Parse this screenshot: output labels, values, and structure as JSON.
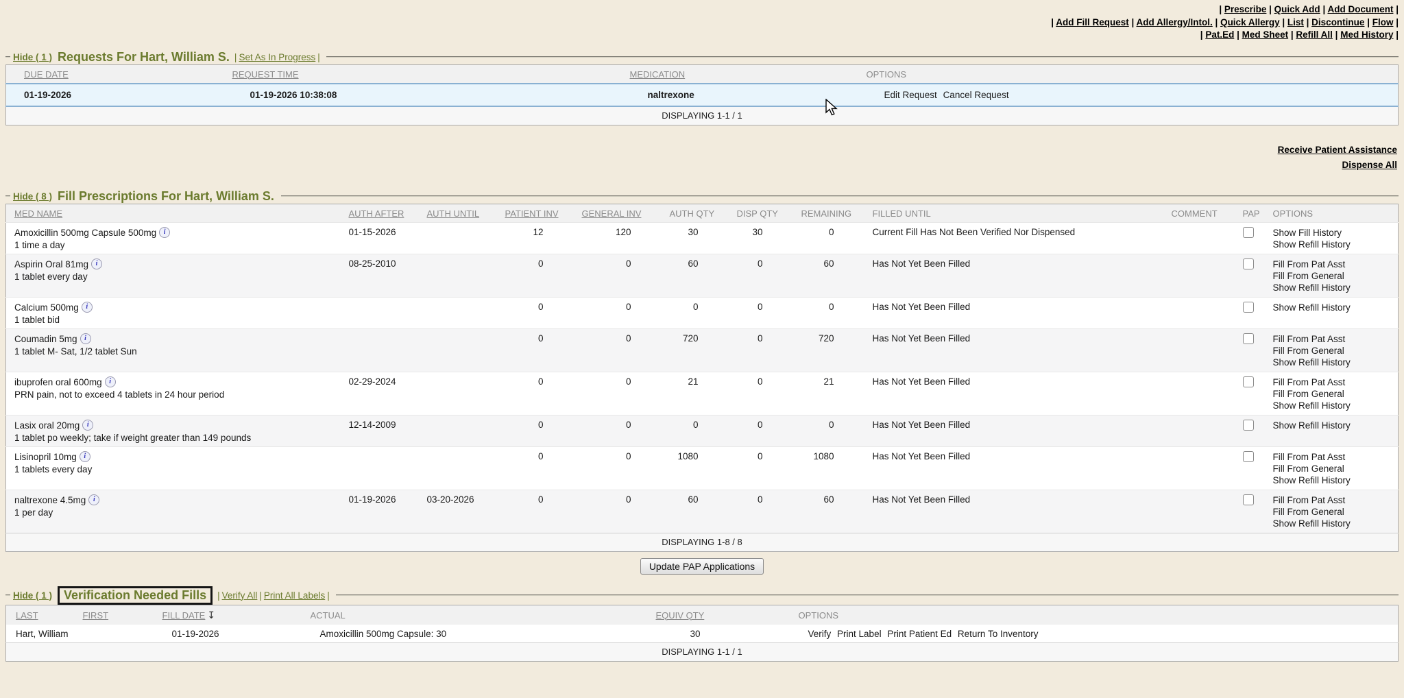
{
  "page": {
    "background": "#f2ebdd",
    "accent_green": "#6b7b2e",
    "selected_row_bg": "#e9f5fc",
    "selected_row_border": "#8ab1d2"
  },
  "icons": {
    "info": "i",
    "sort_desc": "↧",
    "cursor": "arrow-pointer"
  },
  "top_nav": {
    "rows": [
      [
        "Prescribe",
        "Quick Add",
        "Add Document"
      ],
      [
        "Add Fill Request",
        "Add Allergy/Intol.",
        "Quick Allergy",
        "List",
        "Discontinue",
        "Flow"
      ],
      [
        "Pat.Ed",
        "Med Sheet",
        "Refill All",
        "Med History"
      ]
    ]
  },
  "requests": {
    "hide_label": "Hide ( 1 )",
    "title": "Requests For Hart, William S.",
    "actions": [
      "Set As In Progress"
    ],
    "columns": [
      {
        "label": "DUE DATE",
        "sortable": true
      },
      {
        "label": "REQUEST TIME",
        "sortable": true
      },
      {
        "label": "MEDICATION",
        "sortable": true
      },
      {
        "label": "OPTIONS",
        "sortable": false
      }
    ],
    "row": {
      "due_date": "01-19-2026",
      "request_time": "01-19-2026 10:38:08",
      "medication": "naltrexone",
      "options": [
        "Edit Request",
        "Cancel Request"
      ]
    },
    "footer": "DISPLAYING 1-1 / 1"
  },
  "side_links": [
    "Receive Patient Assistance",
    "Dispense All"
  ],
  "fills": {
    "hide_label": "Hide ( 8 )",
    "title": "Fill Prescriptions For Hart, William S.",
    "columns": [
      {
        "label": "MED NAME",
        "sortable": true
      },
      {
        "label": "AUTH AFTER",
        "sortable": true
      },
      {
        "label": "AUTH UNTIL",
        "sortable": true
      },
      {
        "label": "PATIENT INV",
        "sortable": true
      },
      {
        "label": "GENERAL INV",
        "sortable": true
      },
      {
        "label": "AUTH QTY",
        "sortable": false
      },
      {
        "label": "DISP QTY",
        "sortable": false
      },
      {
        "label": "REMAINING",
        "sortable": false
      },
      {
        "label": "FILLED UNTIL",
        "sortable": false
      },
      {
        "label": "COMMENT",
        "sortable": false
      },
      {
        "label": "PAP",
        "sortable": false
      },
      {
        "label": "OPTIONS",
        "sortable": false
      }
    ],
    "rows": [
      {
        "med_name": "Amoxicillin 500mg Capsule 500mg",
        "sig": "1 time a day",
        "auth_after": "01-15-2026",
        "auth_until": "",
        "patient_inv": "12",
        "general_inv": "120",
        "auth_qty": "30",
        "disp_qty": "30",
        "remaining": "0",
        "filled_until": "Current Fill Has Not Been Verified Nor Dispensed",
        "comment": "",
        "pap_checked": false,
        "options": [
          "Show Fill History",
          "Show Refill History"
        ]
      },
      {
        "med_name": "Aspirin Oral 81mg",
        "sig": "1 tablet every day",
        "auth_after": "08-25-2010",
        "auth_until": "",
        "patient_inv": "0",
        "general_inv": "0",
        "auth_qty": "60",
        "disp_qty": "0",
        "remaining": "60",
        "filled_until": "Has Not Yet Been Filled",
        "comment": "",
        "pap_checked": false,
        "options": [
          "Fill From Pat Asst",
          "Fill From General",
          "Show Refill History"
        ]
      },
      {
        "med_name": "Calcium 500mg",
        "sig": "1 tablet bid",
        "auth_after": "",
        "auth_until": "",
        "patient_inv": "0",
        "general_inv": "0",
        "auth_qty": "0",
        "disp_qty": "0",
        "remaining": "0",
        "filled_until": "Has Not Yet Been Filled",
        "comment": "",
        "pap_checked": false,
        "options": [
          "Show Refill History"
        ]
      },
      {
        "med_name": "Coumadin 5mg",
        "sig": "1 tablet M- Sat, 1/2 tablet Sun",
        "auth_after": "",
        "auth_until": "",
        "patient_inv": "0",
        "general_inv": "0",
        "auth_qty": "720",
        "disp_qty": "0",
        "remaining": "720",
        "filled_until": "Has Not Yet Been Filled",
        "comment": "",
        "pap_checked": false,
        "options": [
          "Fill From Pat Asst",
          "Fill From General",
          "Show Refill History"
        ]
      },
      {
        "med_name": "ibuprofen oral 600mg",
        "sig": "PRN pain, not to exceed 4 tablets in 24 hour period",
        "auth_after": "02-29-2024",
        "auth_until": "",
        "patient_inv": "0",
        "general_inv": "0",
        "auth_qty": "21",
        "disp_qty": "0",
        "remaining": "21",
        "filled_until": "Has Not Yet Been Filled",
        "comment": "",
        "pap_checked": false,
        "options": [
          "Fill From Pat Asst",
          "Fill From General",
          "Show Refill History"
        ]
      },
      {
        "med_name": "Lasix oral 20mg",
        "sig": "1 tablet po weekly; take if weight greater than 149 pounds",
        "auth_after": "12-14-2009",
        "auth_until": "",
        "patient_inv": "0",
        "general_inv": "0",
        "auth_qty": "0",
        "disp_qty": "0",
        "remaining": "0",
        "filled_until": "Has Not Yet Been Filled",
        "comment": "",
        "pap_checked": false,
        "options": [
          "Show Refill History"
        ]
      },
      {
        "med_name": "Lisinopril 10mg",
        "sig": "1 tablets every day",
        "auth_after": "",
        "auth_until": "",
        "patient_inv": "0",
        "general_inv": "0",
        "auth_qty": "1080",
        "disp_qty": "0",
        "remaining": "1080",
        "filled_until": "Has Not Yet Been Filled",
        "comment": "",
        "pap_checked": false,
        "options": [
          "Fill From Pat Asst",
          "Fill From General",
          "Show Refill History"
        ]
      },
      {
        "med_name": "naltrexone 4.5mg",
        "sig": "1 per day",
        "auth_after": "01-19-2026",
        "auth_until": "03-20-2026",
        "patient_inv": "0",
        "general_inv": "0",
        "auth_qty": "60",
        "disp_qty": "0",
        "remaining": "60",
        "filled_until": "Has Not Yet Been Filled",
        "comment": "",
        "pap_checked": false,
        "options": [
          "Fill From Pat Asst",
          "Fill From General",
          "Show Refill History"
        ]
      }
    ],
    "footer": "DISPLAYING 1-8 / 8",
    "update_pap_button": "Update PAP Applications"
  },
  "verification": {
    "hide_label": "Hide ( 1 )",
    "title": "Verification Needed Fills",
    "actions": [
      "Verify All",
      "Print All Labels"
    ],
    "columns": [
      {
        "label": "LAST",
        "sortable": true
      },
      {
        "label": "FIRST",
        "sortable": true
      },
      {
        "label": "FILL DATE",
        "sortable": true,
        "sort_icon": true
      },
      {
        "label": "ACTUAL",
        "sortable": false
      },
      {
        "label": "EQUIV QTY",
        "sortable": true
      },
      {
        "label": "OPTIONS",
        "sortable": false
      }
    ],
    "row": {
      "last": "Hart, William",
      "first": "",
      "fill_date": "01-19-2026",
      "actual": "Amoxicillin 500mg Capsule: 30",
      "equiv_qty": "30",
      "options": [
        "Verify",
        "Print Label",
        "Print Patient Ed",
        "Return To Inventory"
      ]
    },
    "footer": "DISPLAYING 1-1 / 1"
  }
}
